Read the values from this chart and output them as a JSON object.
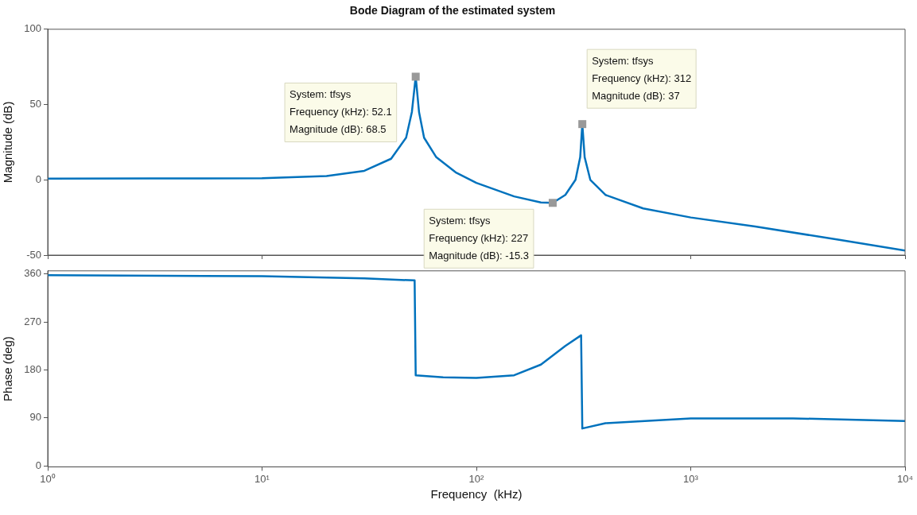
{
  "chart_data": [
    {
      "type": "line",
      "title": "Bode Diagram of the estimated system",
      "ylabel": "Magnitude (dB)",
      "xlim": [
        1,
        10000
      ],
      "xticks": [
        {
          "value": 1,
          "label": null
        },
        {
          "value": 10,
          "label": null
        },
        {
          "value": 100,
          "label": null
        },
        {
          "value": 1000,
          "label": null
        },
        {
          "value": 10000,
          "label": null
        }
      ],
      "log": "x",
      "ylim": [
        -50,
        100
      ],
      "yticks": [
        -50,
        0,
        50,
        100
      ],
      "tick_labels": "y",
      "grid": false,
      "x": [
        1,
        3,
        10,
        20,
        30,
        40,
        47,
        50,
        52.1,
        54,
        57,
        65,
        80,
        100,
        150,
        200,
        227,
        260,
        290,
        305,
        312,
        320,
        340,
        400,
        600,
        1000,
        2000,
        5000,
        10000
      ],
      "series": [
        {
          "color": "#0072bd",
          "values": [
            0.8,
            0.9,
            1,
            2.5,
            6,
            14,
            28,
            45,
            68.5,
            45,
            28,
            15,
            5,
            -2,
            -11,
            -15,
            -15.3,
            -10,
            0,
            15,
            37,
            15,
            0,
            -10,
            -19,
            -25,
            -31,
            -40,
            -47
          ]
        }
      ],
      "annotations": [
        {
          "text": "System: tfsys\nFrequency (kHz): 52.1\nMagnitude (dB): 68.5",
          "x": 52.1,
          "y": 68.5
        },
        {
          "text": "System: tfsys\nFrequency (kHz): 312\nMagnitude (dB): 37",
          "x": 312,
          "y": 37
        },
        {
          "text": "System: tfsys\nFrequency (kHz): 227\nMagnitude (dB): -15.3",
          "x": 227,
          "y": -15.3
        }
      ]
    },
    {
      "type": "line",
      "xlabel": "Frequency  (kHz)",
      "ylabel": "Phase (deg)",
      "xlim": [
        1,
        10000
      ],
      "xticks": [
        {
          "value": 1,
          "label": "10⁰"
        },
        {
          "value": 10,
          "label": "10¹"
        },
        {
          "value": 100,
          "label": "10²"
        },
        {
          "value": 1000,
          "label": "10³"
        },
        {
          "value": 10000,
          "label": "10⁴"
        }
      ],
      "log": "x",
      "ylim": [
        -2,
        366
      ],
      "yticks": [
        0,
        90,
        180,
        270,
        360
      ],
      "grid": false,
      "x": [
        1,
        10,
        30,
        51.5,
        52.1,
        70,
        100,
        150,
        200,
        260,
        308,
        312,
        400,
        1000,
        3000,
        10000
      ],
      "series": [
        {
          "color": "#0072bd",
          "values": [
            358,
            356,
            352,
            348,
            170,
            166,
            165,
            170,
            190,
            225,
            245,
            70,
            80,
            89,
            89,
            84
          ]
        }
      ]
    }
  ]
}
